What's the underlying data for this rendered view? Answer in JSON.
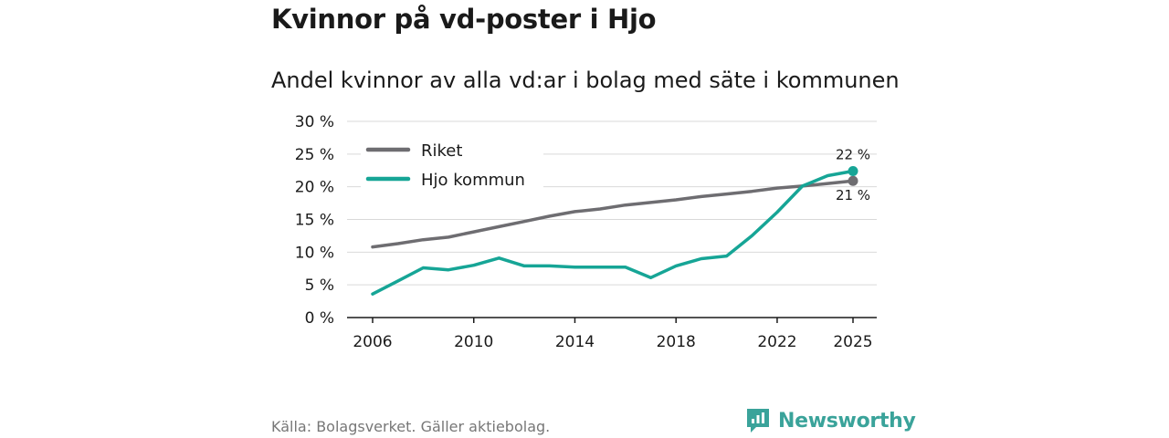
{
  "title": "Kvinnor på vd-poster i Hjo",
  "subtitle": "Andel kvinnor av alla vd:ar i bolag med säte i kommunen",
  "source": "Källa: Bolagsverket. Gäller aktiebolag.",
  "brand": {
    "name": "Newsworthy",
    "icon": "newsworthy-logo-icon",
    "color": "#3aa39a"
  },
  "chart_data": {
    "type": "line",
    "title": "Kvinnor på vd-poster i Hjo",
    "subtitle": "Andel kvinnor av alla vd:ar i bolag med säte i kommunen",
    "xlabel": "",
    "ylabel": "",
    "ylim": [
      0,
      30
    ],
    "yticks": [
      0,
      5,
      10,
      15,
      20,
      25,
      30
    ],
    "ytick_labels": [
      "0 %",
      "5 %",
      "10 %",
      "15 %",
      "20 %",
      "25 %",
      "30 %"
    ],
    "xticks": [
      2006,
      2010,
      2014,
      2018,
      2022,
      2025
    ],
    "xtick_labels": [
      "2006",
      "2010",
      "2014",
      "2018",
      "2022",
      "2025"
    ],
    "grid": true,
    "legend_position": "top-left",
    "x": [
      2006,
      2007,
      2008,
      2009,
      2010,
      2011,
      2012,
      2013,
      2014,
      2015,
      2016,
      2017,
      2018,
      2019,
      2020,
      2021,
      2022,
      2023,
      2024,
      2025
    ],
    "series": [
      {
        "name": "Riket",
        "color": "#6e6d71",
        "values": [
          10.8,
          11.3,
          11.9,
          12.3,
          13.1,
          13.9,
          14.7,
          15.5,
          16.2,
          16.6,
          17.2,
          17.6,
          18.0,
          18.5,
          18.9,
          19.3,
          19.8,
          20.1,
          20.5,
          20.9
        ],
        "end_label": "21 %"
      },
      {
        "name": "Hjo kommun",
        "color": "#16a596",
        "values": [
          3.6,
          5.6,
          7.6,
          7.3,
          8.0,
          9.1,
          7.9,
          7.9,
          7.7,
          7.7,
          7.7,
          6.1,
          7.9,
          9.0,
          9.4,
          12.5,
          16.1,
          20.1,
          21.7,
          22.4
        ],
        "end_label": "22 %"
      }
    ]
  }
}
